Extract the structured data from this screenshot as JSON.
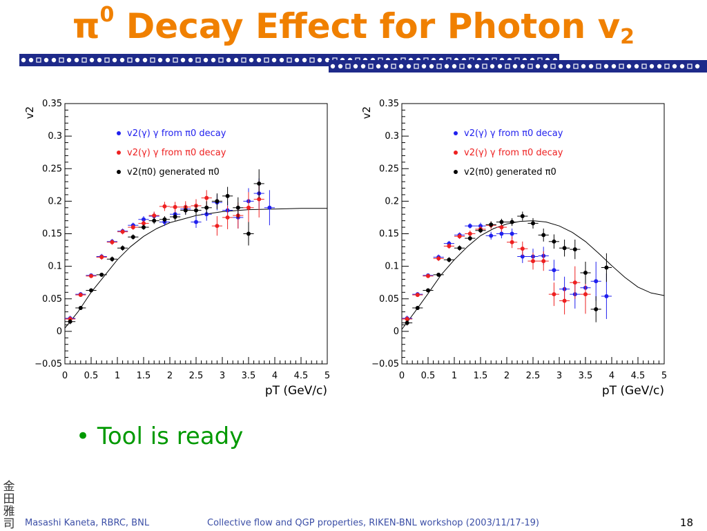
{
  "title": {
    "pi": "π",
    "sup": "0",
    "main": " Decay Effect for Photon v",
    "sub": "2"
  },
  "bullet": {
    "mark": "•",
    "text": "Tool is ready"
  },
  "seal": [
    "金",
    "田",
    "雅",
    "司"
  ],
  "footer": {
    "author": "Masashi Kaneta, RBRC, BNL",
    "event": "Collective flow and QGP properties, RIKEN-BNL workshop (2003/11/17-19)",
    "page": "18"
  },
  "colors": {
    "title": "#f08000",
    "bullet": "#009900",
    "footer": "#3b4ea6",
    "blue": "#2020ee",
    "red": "#ee2020",
    "black": "#000000"
  },
  "chart_data": [
    {
      "type": "scatter",
      "xlabel": "pT (GeV/c)",
      "ylabel": "v2",
      "xlim": [
        0,
        5
      ],
      "ylim": [
        -0.05,
        0.35
      ],
      "xticks": [
        "0",
        "0.5",
        "1",
        "1.5",
        "2",
        "2.5",
        "3",
        "3.5",
        "4",
        "4.5",
        "5"
      ],
      "yticks": [
        "−0.05",
        "0",
        "0.05",
        "0.1",
        "0.15",
        "0.2",
        "0.25",
        "0.3",
        "0.35"
      ],
      "legend_position": "top-left",
      "series": [
        {
          "name": "v2(γ) γ from π0 decay",
          "color": "#2020ee",
          "points": [
            [
              0.1,
              0.02,
              0.004
            ],
            [
              0.3,
              0.057,
              0.003
            ],
            [
              0.5,
              0.086,
              0.003
            ],
            [
              0.7,
              0.115,
              0.004
            ],
            [
              0.9,
              0.138,
              0.004
            ],
            [
              1.1,
              0.154,
              0.004
            ],
            [
              1.3,
              0.163,
              0.004
            ],
            [
              1.5,
              0.172,
              0.005
            ],
            [
              1.7,
              0.177,
              0.006
            ],
            [
              1.9,
              0.168,
              0.006
            ],
            [
              2.1,
              0.18,
              0.007
            ],
            [
              2.3,
              0.188,
              0.008
            ],
            [
              2.5,
              0.168,
              0.009
            ],
            [
              2.7,
              0.18,
              0.01
            ],
            [
              2.9,
              0.198,
              0.012
            ],
            [
              3.1,
              0.186,
              0.014
            ],
            [
              3.3,
              0.175,
              0.017
            ],
            [
              3.5,
              0.2,
              0.02
            ],
            [
              3.7,
              0.212,
              0.023
            ],
            [
              3.9,
              0.19,
              0.027
            ]
          ]
        },
        {
          "name": "v2(γ) γ from π0 decay",
          "color": "#ee2020",
          "points": [
            [
              0.1,
              0.019,
              0.004
            ],
            [
              0.3,
              0.056,
              0.003
            ],
            [
              0.5,
              0.085,
              0.003
            ],
            [
              0.7,
              0.114,
              0.004
            ],
            [
              0.9,
              0.137,
              0.004
            ],
            [
              1.1,
              0.153,
              0.004
            ],
            [
              1.3,
              0.16,
              0.004
            ],
            [
              1.5,
              0.166,
              0.005
            ],
            [
              1.7,
              0.178,
              0.006
            ],
            [
              1.9,
              0.192,
              0.007
            ],
            [
              2.1,
              0.191,
              0.008
            ],
            [
              2.3,
              0.191,
              0.009
            ],
            [
              2.5,
              0.193,
              0.01
            ],
            [
              2.7,
              0.205,
              0.012
            ],
            [
              2.9,
              0.162,
              0.015
            ],
            [
              3.1,
              0.175,
              0.018
            ],
            [
              3.3,
              0.178,
              0.02
            ],
            [
              3.5,
              0.19,
              0.024
            ],
            [
              3.7,
              0.203,
              0.028
            ]
          ]
        },
        {
          "name": "v2(π0) generated π0",
          "color": "#000000",
          "points": [
            [
              0.1,
              0.015,
              0.004
            ],
            [
              0.3,
              0.036,
              0.003
            ],
            [
              0.5,
              0.063,
              0.003
            ],
            [
              0.7,
              0.087,
              0.003
            ],
            [
              0.9,
              0.111,
              0.004
            ],
            [
              1.1,
              0.128,
              0.004
            ],
            [
              1.3,
              0.145,
              0.004
            ],
            [
              1.5,
              0.16,
              0.004
            ],
            [
              1.7,
              0.17,
              0.005
            ],
            [
              1.9,
              0.172,
              0.005
            ],
            [
              2.1,
              0.176,
              0.006
            ],
            [
              2.3,
              0.186,
              0.007
            ],
            [
              2.5,
              0.186,
              0.008
            ],
            [
              2.7,
              0.19,
              0.01
            ],
            [
              2.9,
              0.2,
              0.012
            ],
            [
              3.1,
              0.208,
              0.014
            ],
            [
              3.3,
              0.19,
              0.016
            ],
            [
              3.5,
              0.15,
              0.018
            ],
            [
              3.7,
              0.227,
              0.022
            ]
          ]
        }
      ],
      "fit": [
        [
          0,
          0.005
        ],
        [
          0.25,
          0.03
        ],
        [
          0.5,
          0.06
        ],
        [
          0.75,
          0.085
        ],
        [
          1.0,
          0.11
        ],
        [
          1.25,
          0.13
        ],
        [
          1.5,
          0.146
        ],
        [
          1.75,
          0.158
        ],
        [
          2.0,
          0.167
        ],
        [
          2.5,
          0.178
        ],
        [
          3.0,
          0.184
        ],
        [
          3.5,
          0.187
        ],
        [
          4.0,
          0.188
        ],
        [
          4.5,
          0.189
        ],
        [
          5.0,
          0.189
        ]
      ]
    },
    {
      "type": "scatter",
      "xlabel": "pT (GeV/c)",
      "ylabel": "v2",
      "xlim": [
        0,
        5
      ],
      "ylim": [
        -0.05,
        0.35
      ],
      "xticks": [
        "0",
        "0.5",
        "1",
        "1.5",
        "2",
        "2.5",
        "3",
        "3.5",
        "4",
        "4.5",
        "5"
      ],
      "yticks": [
        "−0.05",
        "0",
        "0.05",
        "0.1",
        "0.15",
        "0.2",
        "0.25",
        "0.3",
        "0.35"
      ],
      "legend_position": "top-left",
      "series": [
        {
          "name": "v2(γ) γ from π0 decay",
          "color": "#2020ee",
          "points": [
            [
              0.1,
              0.02,
              0.004
            ],
            [
              0.3,
              0.057,
              0.003
            ],
            [
              0.5,
              0.086,
              0.003
            ],
            [
              0.7,
              0.114,
              0.004
            ],
            [
              0.9,
              0.135,
              0.004
            ],
            [
              1.1,
              0.148,
              0.004
            ],
            [
              1.3,
              0.162,
              0.004
            ],
            [
              1.5,
              0.162,
              0.005
            ],
            [
              1.7,
              0.147,
              0.006
            ],
            [
              1.9,
              0.15,
              0.007
            ],
            [
              2.1,
              0.15,
              0.008
            ],
            [
              2.3,
              0.115,
              0.01
            ],
            [
              2.5,
              0.115,
              0.012
            ],
            [
              2.7,
              0.116,
              0.014
            ],
            [
              2.9,
              0.094,
              0.016
            ],
            [
              3.1,
              0.065,
              0.019
            ],
            [
              3.3,
              0.057,
              0.022
            ],
            [
              3.5,
              0.067,
              0.026
            ],
            [
              3.7,
              0.077,
              0.03
            ],
            [
              3.9,
              0.054,
              0.035
            ]
          ]
        },
        {
          "name": "v2(γ) γ from π0 decay",
          "color": "#ee2020",
          "points": [
            [
              0.1,
              0.019,
              0.004
            ],
            [
              0.3,
              0.056,
              0.003
            ],
            [
              0.5,
              0.085,
              0.003
            ],
            [
              0.7,
              0.112,
              0.004
            ],
            [
              0.9,
              0.131,
              0.004
            ],
            [
              1.1,
              0.146,
              0.004
            ],
            [
              1.3,
              0.15,
              0.005
            ],
            [
              1.5,
              0.157,
              0.005
            ],
            [
              1.7,
              0.163,
              0.006
            ],
            [
              1.9,
              0.16,
              0.007
            ],
            [
              2.1,
              0.137,
              0.009
            ],
            [
              2.3,
              0.127,
              0.011
            ],
            [
              2.5,
              0.108,
              0.013
            ],
            [
              2.7,
              0.108,
              0.015
            ],
            [
              2.9,
              0.057,
              0.018
            ],
            [
              3.1,
              0.047,
              0.021
            ],
            [
              3.3,
              0.075,
              0.025
            ],
            [
              3.5,
              0.057,
              0.03
            ]
          ]
        },
        {
          "name": "v2(π0) generated π0",
          "color": "#000000",
          "points": [
            [
              0.1,
              0.013,
              0.004
            ],
            [
              0.3,
              0.036,
              0.003
            ],
            [
              0.5,
              0.063,
              0.003
            ],
            [
              0.7,
              0.087,
              0.003
            ],
            [
              0.9,
              0.11,
              0.004
            ],
            [
              1.1,
              0.128,
              0.004
            ],
            [
              1.3,
              0.143,
              0.004
            ],
            [
              1.5,
              0.155,
              0.004
            ],
            [
              1.7,
              0.164,
              0.005
            ],
            [
              1.9,
              0.168,
              0.005
            ],
            [
              2.1,
              0.168,
              0.006
            ],
            [
              2.3,
              0.177,
              0.007
            ],
            [
              2.5,
              0.166,
              0.008
            ],
            [
              2.7,
              0.148,
              0.01
            ],
            [
              2.9,
              0.138,
              0.011
            ],
            [
              3.1,
              0.128,
              0.013
            ],
            [
              3.3,
              0.126,
              0.015
            ],
            [
              3.5,
              0.09,
              0.017
            ],
            [
              3.7,
              0.034,
              0.02
            ],
            [
              3.9,
              0.098,
              0.022
            ]
          ]
        }
      ],
      "fit": [
        [
          0,
          0.003
        ],
        [
          0.25,
          0.03
        ],
        [
          0.5,
          0.058
        ],
        [
          0.75,
          0.087
        ],
        [
          1.0,
          0.11
        ],
        [
          1.25,
          0.13
        ],
        [
          1.5,
          0.147
        ],
        [
          1.75,
          0.158
        ],
        [
          2.0,
          0.165
        ],
        [
          2.25,
          0.169
        ],
        [
          2.5,
          0.17
        ],
        [
          2.75,
          0.168
        ],
        [
          3.0,
          0.162
        ],
        [
          3.25,
          0.152
        ],
        [
          3.5,
          0.138
        ],
        [
          3.75,
          0.12
        ],
        [
          4.0,
          0.101
        ],
        [
          4.25,
          0.083
        ],
        [
          4.5,
          0.068
        ],
        [
          4.75,
          0.059
        ],
        [
          5.0,
          0.055
        ]
      ]
    }
  ]
}
